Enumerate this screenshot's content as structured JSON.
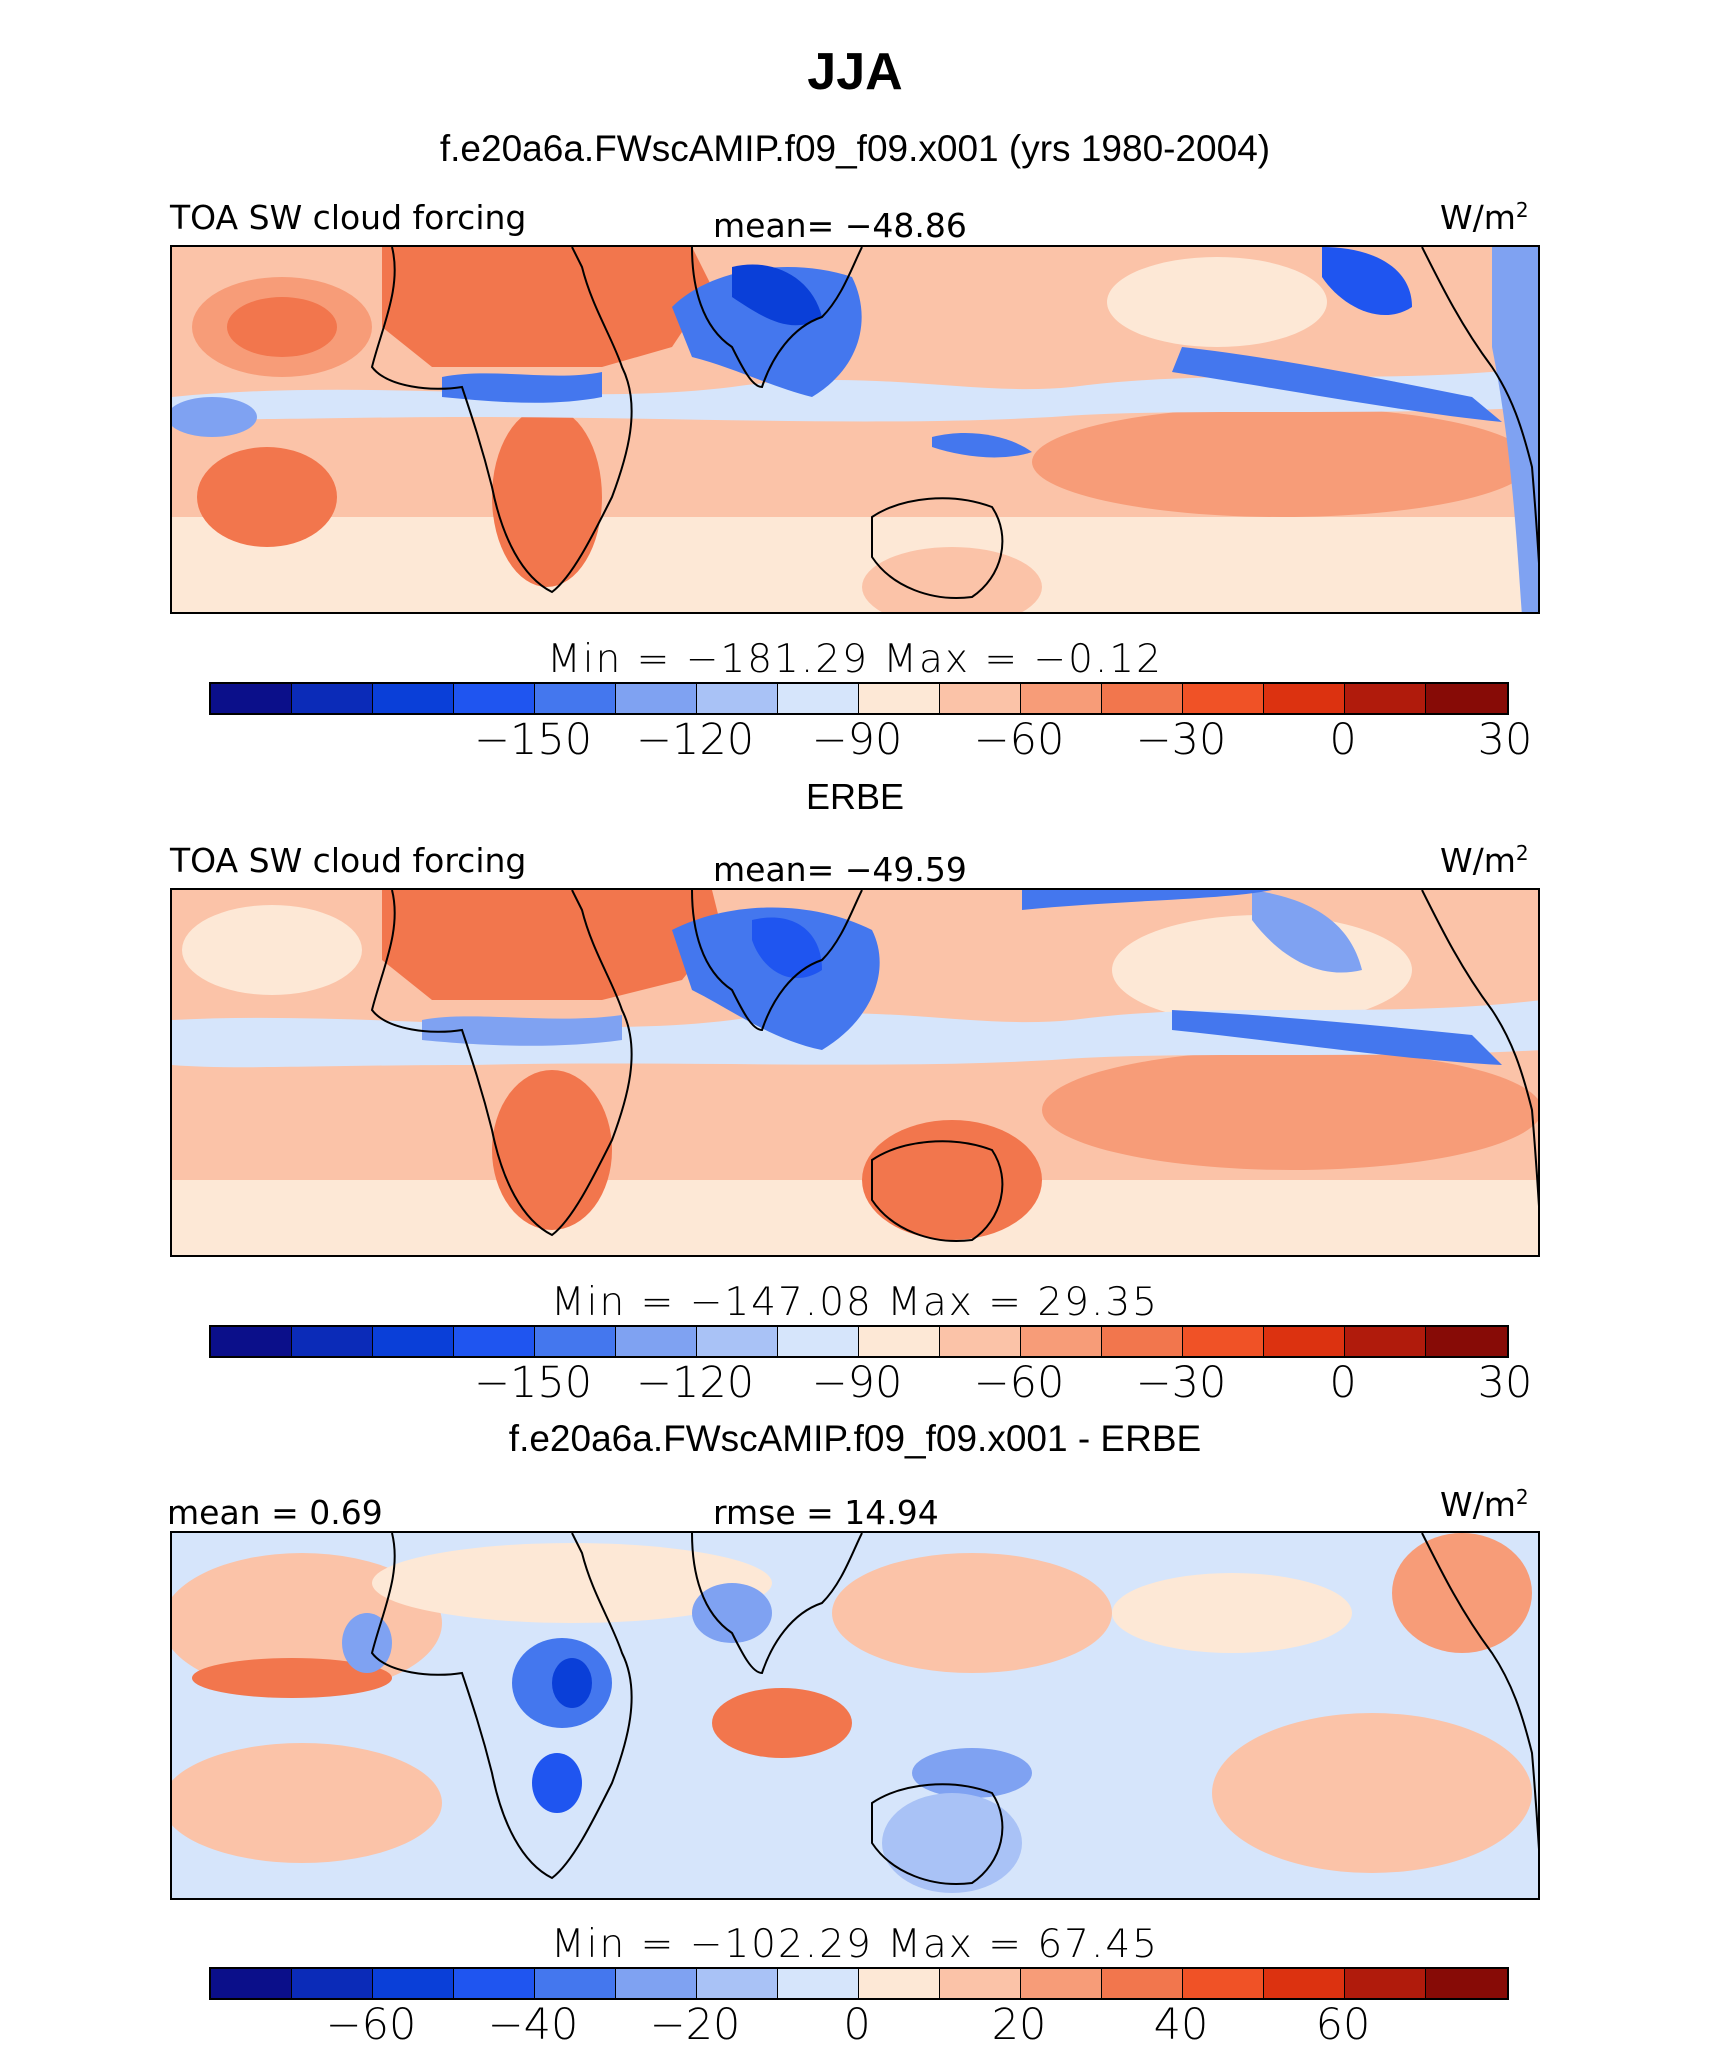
{
  "title": "JJA",
  "case_title": "f.e20a6a.FWscAMIP.f09_f09.x001 (yrs 1980-2004)",
  "obs_title": "ERBE",
  "diff_title": "f.e20a6a.FWscAMIP.f09_f09.x001 - ERBE",
  "panels": [
    {
      "id": "model",
      "left_label": "TOA SW cloud forcing",
      "center_label": "mean= −48.86",
      "units_base": "W/m",
      "units_exp": "2",
      "minmax": "Min = −181.29 Max = −0.12"
    },
    {
      "id": "obs",
      "left_label": "TOA SW cloud forcing",
      "center_label": "mean= −49.59",
      "units_base": "W/m",
      "units_exp": "2",
      "minmax": "Min = −147.08 Max = 29.35"
    },
    {
      "id": "diff",
      "left_label": "mean = 0.69",
      "center_label": "rmse = 14.94",
      "units_base": "W/m",
      "units_exp": "2",
      "minmax": "Min = −102.29 Max = 67.45"
    }
  ],
  "colorbar_colors": [
    "#0b0f8a",
    "#0b2bb8",
    "#0a3fd8",
    "#1f55f0",
    "#4477ee",
    "#7fa2f2",
    "#a9c2f6",
    "#d6e5fb",
    "#fde8d6",
    "#fbc3a8",
    "#f79c78",
    "#f2764d",
    "#f05226",
    "#dc3210",
    "#b01b0c",
    "#870b06"
  ],
  "colorbar_ticks_main": [
    {
      "label": "−150",
      "pos": 4
    },
    {
      "label": "−120",
      "pos": 6
    },
    {
      "label": "−90",
      "pos": 8
    },
    {
      "label": "−60",
      "pos": 10
    },
    {
      "label": "−30",
      "pos": 12
    },
    {
      "label": "0",
      "pos": 14
    },
    {
      "label": "30",
      "pos": 16
    }
  ],
  "colorbar_ticks_diff": [
    {
      "label": "−60",
      "pos": 2
    },
    {
      "label": "−40",
      "pos": 4
    },
    {
      "label": "−20",
      "pos": 6
    },
    {
      "label": "0",
      "pos": 8
    },
    {
      "label": "20",
      "pos": 10
    },
    {
      "label": "40",
      "pos": 12
    },
    {
      "label": "60",
      "pos": 14
    }
  ]
}
